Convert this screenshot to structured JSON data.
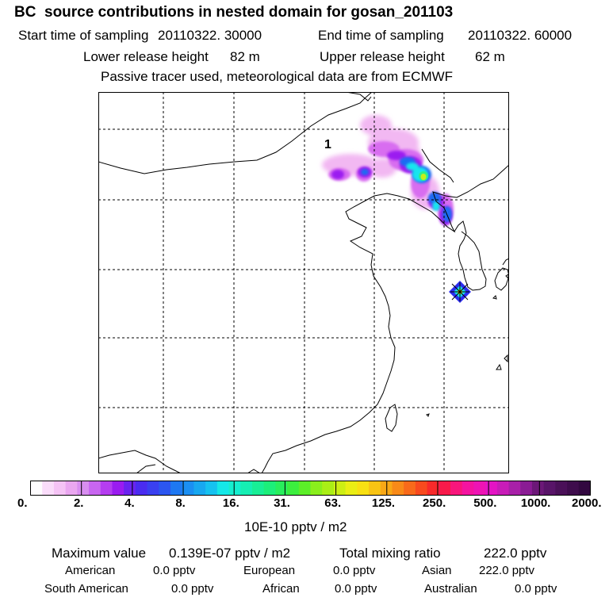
{
  "header": {
    "title": "BC  source contributions in nested domain for gosan_201103",
    "start_label": "Start time of sampling",
    "start_value": "20110322. 30000",
    "end_label": "End time of sampling",
    "end_value": "20110322. 60000",
    "lower_label": "Lower release height",
    "lower_value": "82 m",
    "upper_label": "Upper release height",
    "upper_value": "62 m",
    "note": "Passive tracer used, meteorological data are from ECMWF"
  },
  "map": {
    "marker_label": "1",
    "plume_colors": [
      "#f2b8f2",
      "#d86df0",
      "#9b1ff0",
      "#1f6cf2",
      "#17e6ee",
      "#2cf08e",
      "#c6f01c"
    ],
    "receptor_colors": [
      "#2c2cf0",
      "#18e0e8",
      "#f0f000"
    ]
  },
  "colorbar": {
    "tick_labels": [
      "0.",
      "2.",
      "4.",
      "8.",
      "16.",
      "31.",
      "63.",
      "125.",
      "250.",
      "500.",
      "1000.",
      "2000."
    ],
    "colors": [
      "#fefcfe",
      "#fadcfa",
      "#f5c3f5",
      "#eaa7f0",
      "#d88ef0",
      "#c866f0",
      "#b53df0",
      "#9a1cf0",
      "#6a24f0",
      "#4a2cf0",
      "#3a40f0",
      "#2c56f0",
      "#1e78f2",
      "#1b8ff2",
      "#18a8f0",
      "#16c2f0",
      "#15e8e8",
      "#15eecf",
      "#16eeb3",
      "#18ee96",
      "#1cee7a",
      "#28ee5c",
      "#3cee3e",
      "#5cee28",
      "#8aee1c",
      "#aaee16",
      "#cdee14",
      "#eaee14",
      "#f8e012",
      "#f8c414",
      "#f8a816",
      "#f88a18",
      "#f86a1a",
      "#f84a1e",
      "#f82a2a",
      "#f81a4a",
      "#f8167c",
      "#f414a0",
      "#ee14b4",
      "#e414c4",
      "#c81cb8",
      "#a820a8",
      "#8a1c94",
      "#6c1878",
      "#581468",
      "#4a1058",
      "#3e0c4c",
      "#320840"
    ],
    "unit": "10E-10 pptv / m2"
  },
  "stats": {
    "max_label": "Maximum value",
    "max_value": "0.139E-07 pptv / m2",
    "total_label": "Total mixing ratio",
    "total_value": "222.0 pptv",
    "american_label": "American",
    "american_value": "0.0 pptv",
    "european_label": "European",
    "european_value": "0.0 pptv",
    "asian_label": "Asian",
    "asian_value": "222.0 pptv",
    "south_american_label": "South American",
    "south_american_value": "0.0 pptv",
    "african_label": "African",
    "african_value": "0.0 pptv",
    "australian_label": "Australian",
    "australian_value": "0.0 pptv"
  }
}
